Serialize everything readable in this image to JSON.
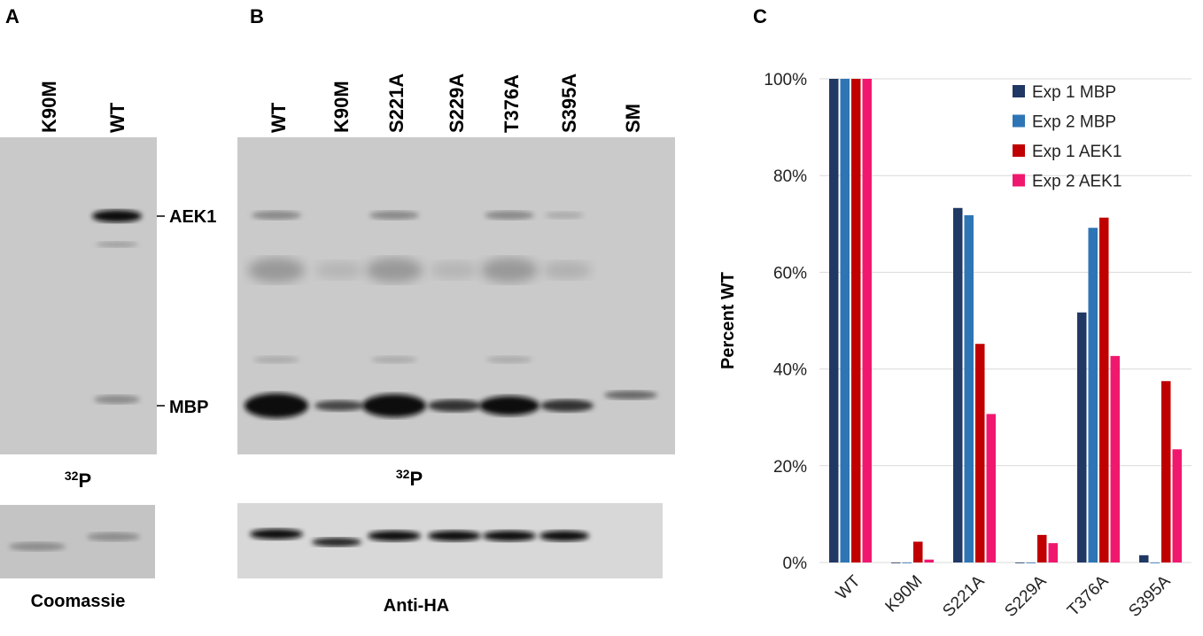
{
  "panel_a": {
    "letter": "A",
    "lanes": [
      "K90M",
      "WT"
    ],
    "bands": [
      "AEK1",
      "MBP"
    ],
    "isotope": {
      "mass": "32",
      "element": "P"
    },
    "stain": "Coomassie"
  },
  "panel_b": {
    "letter": "B",
    "lanes": [
      "WT",
      "K90M",
      "S221A",
      "S229A",
      "T376A",
      "S395A",
      "SM"
    ],
    "isotope": {
      "mass": "32",
      "element": "P"
    },
    "antibody": "Anti-HA"
  },
  "chart_data": {
    "type": "bar",
    "panel_letter": "C",
    "y_label": "Percent WT",
    "categories": [
      "WT",
      "K90M",
      "S221A",
      "S229A",
      "T376A",
      "S395A"
    ],
    "series": [
      {
        "name": "Exp 1 MBP",
        "color": "#203864",
        "values": [
          100,
          0,
          73.3,
          0,
          51.7,
          1.5
        ]
      },
      {
        "name": "Exp 2 MBP",
        "color": "#2e75b6",
        "values": [
          100,
          0,
          71.8,
          0,
          69.2,
          0
        ]
      },
      {
        "name": "Exp 1 AEK1",
        "color": "#c00000",
        "values": [
          100,
          4.3,
          45.2,
          5.7,
          71.3,
          37.5
        ]
      },
      {
        "name": "Exp 2 AEK1",
        "color": "#f0186e",
        "values": [
          100,
          0.6,
          30.7,
          4.0,
          42.7,
          23.4
        ]
      }
    ],
    "ylim": [
      0,
      100
    ],
    "yticks": [
      {
        "value": 0,
        "label": "0%"
      },
      {
        "value": 20,
        "label": "20%"
      },
      {
        "value": 40,
        "label": "40%"
      },
      {
        "value": 60,
        "label": "60%"
      },
      {
        "value": 80,
        "label": "80%"
      },
      {
        "value": 100,
        "label": "100%"
      }
    ],
    "grid": true,
    "legend": "top-right"
  }
}
